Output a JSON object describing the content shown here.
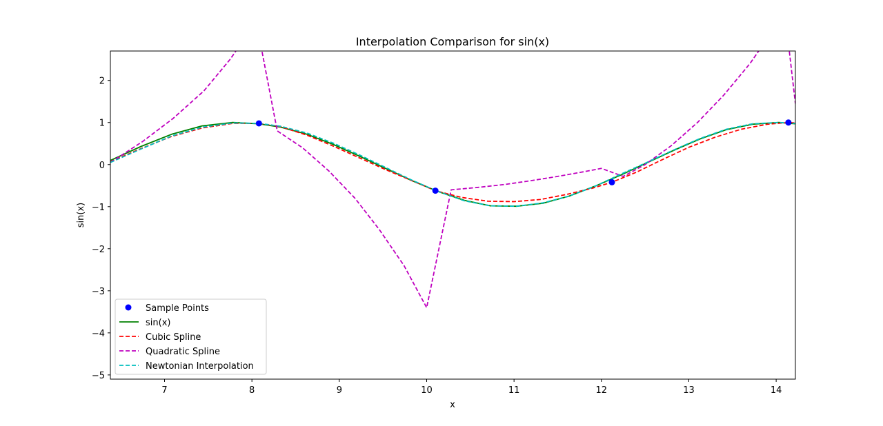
{
  "chart_data": {
    "type": "line",
    "title": "Interpolation Comparison for sin(x)",
    "xlabel": "x",
    "ylabel": "sin(x)",
    "xlim": [
      6.38,
      14.22
    ],
    "ylim": [
      -5.1,
      2.7
    ],
    "xticks": [
      {
        "v": 7,
        "label": "7"
      },
      {
        "v": 8,
        "label": "8"
      },
      {
        "v": 9,
        "label": "9"
      },
      {
        "v": 10,
        "label": "10"
      },
      {
        "v": 11,
        "label": "11"
      },
      {
        "v": 12,
        "label": "12"
      },
      {
        "v": 13,
        "label": "13"
      },
      {
        "v": 14,
        "label": "14"
      }
    ],
    "yticks": [
      {
        "v": 2,
        "label": "2"
      },
      {
        "v": 1,
        "label": "1"
      },
      {
        "v": 0,
        "label": "0"
      },
      {
        "v": -1,
        "label": "−1"
      },
      {
        "v": -2,
        "label": "−2"
      },
      {
        "v": -3,
        "label": "−3"
      },
      {
        "v": -4,
        "label": "−4"
      },
      {
        "v": -5,
        "label": "−5"
      }
    ],
    "grid": false,
    "legend_position": "lower-left",
    "sample_points": {
      "name": "Sample Points",
      "color": "#0000ff",
      "x": [
        8.08,
        10.1,
        12.12,
        14.14
      ],
      "y": [
        0.98,
        -0.62,
        -0.42,
        1.0
      ]
    },
    "series": [
      {
        "name": "sin(x)",
        "color": "#008000",
        "style": "solid",
        "x": [
          6.38,
          6.73,
          7.08,
          7.43,
          7.78,
          8.08,
          8.33,
          8.63,
          8.93,
          9.23,
          9.53,
          9.83,
          10.13,
          10.43,
          10.73,
          11.03,
          11.33,
          11.63,
          11.93,
          12.23,
          12.53,
          12.83,
          13.13,
          13.43,
          13.73,
          14.03,
          14.22
        ],
        "y": [
          0.1,
          0.43,
          0.72,
          0.92,
          1.0,
          0.97,
          0.89,
          0.72,
          0.48,
          0.2,
          -0.09,
          -0.38,
          -0.64,
          -0.85,
          -0.98,
          -0.99,
          -0.92,
          -0.75,
          -0.51,
          -0.24,
          0.05,
          0.34,
          0.61,
          0.83,
          0.96,
          1.0,
          0.97
        ]
      },
      {
        "name": "Cubic Spline",
        "color": "#ff0000",
        "style": "dashed",
        "x": [
          6.38,
          6.73,
          7.08,
          7.43,
          7.78,
          8.08,
          8.33,
          8.63,
          8.93,
          9.23,
          9.53,
          9.83,
          10.1,
          10.4,
          10.7,
          11.0,
          11.3,
          11.6,
          11.9,
          12.12,
          12.4,
          12.7,
          13.0,
          13.3,
          13.6,
          13.9,
          14.14,
          14.22
        ],
        "y": [
          0.07,
          0.38,
          0.67,
          0.87,
          0.98,
          0.98,
          0.9,
          0.7,
          0.44,
          0.16,
          -0.12,
          -0.38,
          -0.62,
          -0.78,
          -0.87,
          -0.88,
          -0.83,
          -0.71,
          -0.56,
          -0.42,
          -0.18,
          0.12,
          0.41,
          0.65,
          0.84,
          0.96,
          1.0,
          0.99
        ]
      },
      {
        "name": "Quadratic Spline",
        "color": "#bf00bf",
        "style": "dashed",
        "x": [
          6.38,
          6.75,
          7.1,
          7.45,
          7.75,
          8.05,
          8.29,
          8.58,
          8.88,
          9.18,
          9.46,
          9.74,
          10.0,
          10.28,
          10.6,
          10.9,
          11.2,
          11.5,
          11.8,
          12.0,
          12.25,
          12.5,
          12.8,
          13.1,
          13.4,
          13.7,
          13.9,
          14.1,
          14.22
        ],
        "y": [
          0.05,
          0.55,
          1.1,
          1.75,
          2.5,
          3.4,
          0.8,
          0.4,
          -0.15,
          -0.8,
          -1.55,
          -2.4,
          -3.4,
          -0.6,
          -0.54,
          -0.47,
          -0.38,
          -0.28,
          -0.17,
          -0.09,
          -0.28,
          0.0,
          0.45,
          1.0,
          1.65,
          2.4,
          3.0,
          3.6,
          1.45
        ]
      },
      {
        "name": "Newtonian Interpolation",
        "color": "#00bfbf",
        "style": "dashed",
        "x": [
          6.38,
          6.73,
          7.08,
          7.43,
          7.78,
          8.08,
          8.33,
          8.63,
          8.93,
          9.23,
          9.53,
          9.83,
          10.13,
          10.43,
          10.73,
          11.03,
          11.33,
          11.63,
          11.93,
          12.23,
          12.53,
          12.83,
          13.13,
          13.43,
          13.73,
          14.03,
          14.22
        ],
        "y": [
          0.05,
          0.37,
          0.68,
          0.89,
          0.99,
          0.98,
          0.91,
          0.75,
          0.51,
          0.23,
          -0.07,
          -0.37,
          -0.64,
          -0.86,
          -0.98,
          -0.99,
          -0.91,
          -0.75,
          -0.51,
          -0.22,
          0.06,
          0.35,
          0.62,
          0.84,
          0.97,
          1.0,
          0.98
        ]
      }
    ]
  }
}
